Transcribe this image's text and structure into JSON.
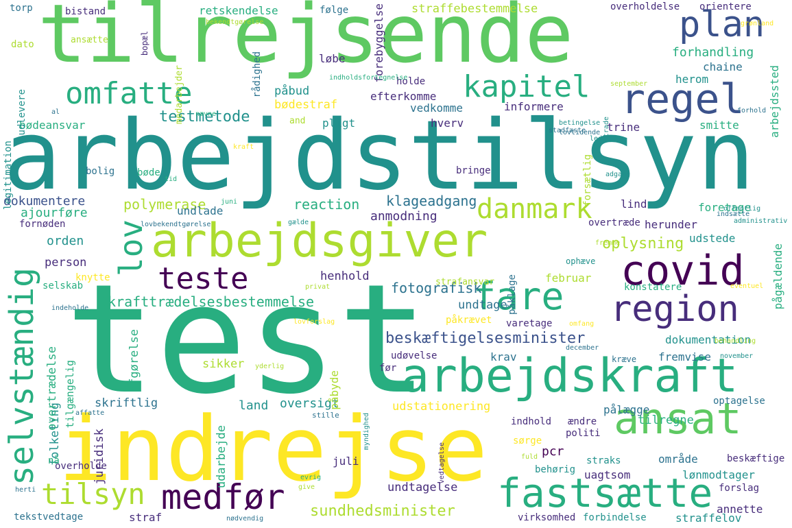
{
  "palette": {
    "purple": "#440154",
    "indigo": "#472d7b",
    "blue": "#3b528b",
    "steel": "#2c728e",
    "teal": "#21918c",
    "sea": "#28ae80",
    "green": "#5ec962",
    "lime": "#addc30",
    "yellow": "#fde725"
  },
  "words": [
    "tilrejsende",
    "arbejdstilsyn",
    "test",
    "indrejse",
    "arbejdsgiver",
    "arbejdskraft",
    "plan",
    "regel",
    "omfatte",
    "kapitel",
    "covid",
    "region",
    "fare",
    "teste",
    "danmark",
    "lov",
    "selvstændig",
    "ansat",
    "fastsætte",
    "medfør",
    "tilsyn",
    "sundhedsminister",
    "beskæftigelsesminister",
    "ikrafttrædelsesbestemmelse",
    "fotografisk",
    "oplysning",
    "testmetode",
    "polymerase",
    "reaction",
    "klageadgang",
    "anmodning",
    "dokumentere",
    "ajourføre",
    "orden",
    "person",
    "henhold",
    "retskendelse",
    "følge",
    "straffebestemmelse",
    "overholdelse",
    "orientere",
    "forhandling",
    "chaine",
    "herom",
    "påbud",
    "bødestraf",
    "efterkomme",
    "vedkomme",
    "informere",
    "holde",
    "løbe",
    "pligt",
    "hverv",
    "trine",
    "smitte",
    "bødeansvar",
    "bolig",
    "bøde",
    "bringe",
    "undlade",
    "foretage",
    "lind",
    "herunder",
    "udstede",
    "overtræde",
    "februar",
    "konstatere",
    "påkrævet",
    "varetage",
    "dokumentation",
    "krav",
    "udøvelse",
    "sikker",
    "fremvise",
    "kræve",
    "skriftlig",
    "land",
    "oversigt",
    "udstationering",
    "pålægge",
    "tilregne",
    "optagelse",
    "pcr",
    "område",
    "straks",
    "uagtsom",
    "lønmodtager",
    "beskæftige",
    "forslag",
    "juli",
    "undtagelse",
    "annette",
    "straffelov",
    "forbindelse",
    "virksomhed",
    "straf",
    "tekstvedtage",
    "overholde",
    "juridisk",
    "folketing",
    "overtrædelse",
    "udarbejde",
    "afgørelse",
    "tilgængelig",
    "påbyde",
    "politi",
    "ændre",
    "indhold",
    "sørge",
    "udlevere",
    "legitimation",
    "torp",
    "bistand",
    "dato",
    "ansætte",
    "bopæl",
    "medarbejder",
    "rådighed",
    "forebyggelse",
    "arbejdssted",
    "pågældende",
    "ophæve",
    "strafansvar",
    "knytte",
    "selskab",
    "fornøden",
    "and",
    "undtage",
    "før",
    "nå",
    "behørig",
    "påklage",
    "forsætlig",
    "fuld",
    "myndighed",
    "stille",
    "affatte",
    "vedtagelse",
    "herti",
    "give",
    "evrig",
    "nødvendig",
    "december",
    "november",
    "yderlig",
    "lovforslag",
    "omfang",
    "indeholde",
    "eventuel",
    "privat",
    "behandling",
    "fremme",
    "gælde",
    "indsætte",
    "juni",
    "lovbekendtgørelse",
    "offentlig",
    "administrativ",
    "adgang",
    "tid",
    "kraft",
    "led",
    "forhold",
    "trade",
    "betingelse",
    "lovtidende",
    "stadfæste",
    "nævne",
    "al",
    "september",
    "indholdsfortegnelse",
    "bekendtgørelse",
    "grønland",
    "ligne",
    "yde",
    "sag"
  ]
}
